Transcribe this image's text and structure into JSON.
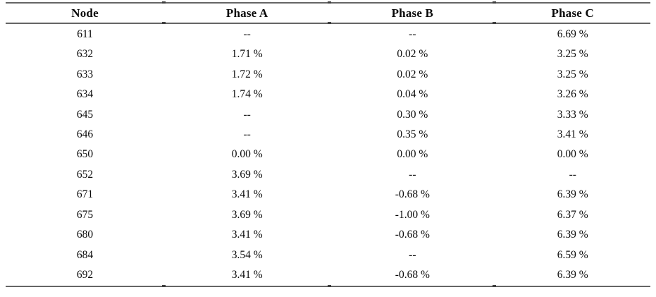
{
  "table": {
    "columns": [
      "Node",
      "Phase A",
      "Phase B",
      "Phase C"
    ],
    "rows": [
      {
        "node": "611",
        "phase_a": "--",
        "phase_b": "--",
        "phase_c": "6.69 %"
      },
      {
        "node": "632",
        "phase_a": "1.71 %",
        "phase_b": "0.02 %",
        "phase_c": "3.25 %"
      },
      {
        "node": "633",
        "phase_a": "1.72 %",
        "phase_b": "0.02 %",
        "phase_c": "3.25 %"
      },
      {
        "node": "634",
        "phase_a": "1.74 %",
        "phase_b": "0.04 %",
        "phase_c": "3.26 %"
      },
      {
        "node": "645",
        "phase_a": "--",
        "phase_b": "0.30 %",
        "phase_c": "3.33 %"
      },
      {
        "node": "646",
        "phase_a": "--",
        "phase_b": "0.35 %",
        "phase_c": "3.41 %"
      },
      {
        "node": "650",
        "phase_a": "0.00 %",
        "phase_b": "0.00 %",
        "phase_c": "0.00 %"
      },
      {
        "node": "652",
        "phase_a": "3.69 %",
        "phase_b": "--",
        "phase_c": "--"
      },
      {
        "node": "671",
        "phase_a": "3.41 %",
        "phase_b": "-0.68 %",
        "phase_c": "6.39 %"
      },
      {
        "node": "675",
        "phase_a": "3.69 %",
        "phase_b": "-1.00 %",
        "phase_c": "6.37 %"
      },
      {
        "node": "680",
        "phase_a": "3.41 %",
        "phase_b": "-0.68 %",
        "phase_c": "6.39 %"
      },
      {
        "node": "684",
        "phase_a": "3.54 %",
        "phase_b": "--",
        "phase_c": "6.59 %"
      },
      {
        "node": "692",
        "phase_a": "3.41 %",
        "phase_b": "-0.68 %",
        "phase_c": "6.39 %"
      }
    ]
  },
  "chart_data": {
    "type": "table",
    "title": "",
    "columns": [
      "Node",
      "Phase A",
      "Phase B",
      "Phase C"
    ],
    "rows": [
      [
        "611",
        "--",
        "--",
        "6.69 %"
      ],
      [
        "632",
        "1.71 %",
        "0.02 %",
        "3.25 %"
      ],
      [
        "633",
        "1.72 %",
        "0.02 %",
        "3.25 %"
      ],
      [
        "634",
        "1.74 %",
        "0.04 %",
        "3.26 %"
      ],
      [
        "645",
        "--",
        "0.30 %",
        "3.33 %"
      ],
      [
        "646",
        "--",
        "0.35 %",
        "3.41 %"
      ],
      [
        "650",
        "0.00 %",
        "0.00 %",
        "0.00 %"
      ],
      [
        "652",
        "3.69 %",
        "--",
        "--"
      ],
      [
        "671",
        "3.41 %",
        "-0.68 %",
        "6.39 %"
      ],
      [
        "675",
        "3.69 %",
        "-1.00 %",
        "6.37 %"
      ],
      [
        "680",
        "3.41 %",
        "-0.68 %",
        "6.39 %"
      ],
      [
        "684",
        "3.54 %",
        "--",
        "6.59 %"
      ],
      [
        "692",
        "3.41 %",
        "-0.68 %",
        "6.39 %"
      ]
    ]
  },
  "colors": {
    "background": "#ffffff",
    "text": "#0a0a0a",
    "rule": "#656565",
    "tick": "#3e3e3e"
  }
}
